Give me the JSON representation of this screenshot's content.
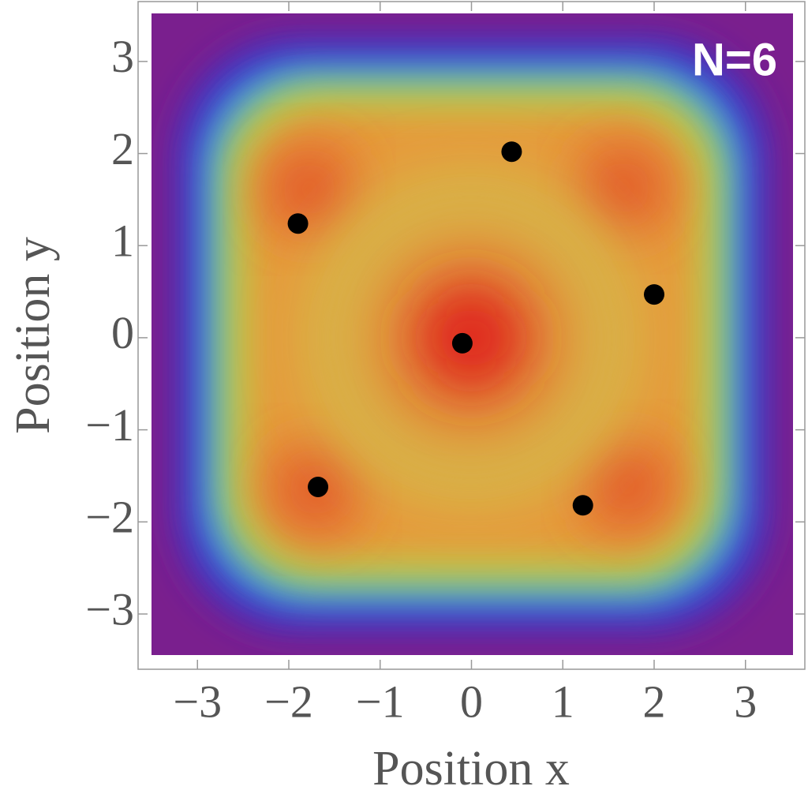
{
  "chart_data": {
    "type": "scatter",
    "annotation": "N=6",
    "x_label": "Position x",
    "y_label": "Position y",
    "x": [
      -1.9,
      0.44,
      2.0,
      -0.1,
      -1.68,
      1.22
    ],
    "values": [
      1.24,
      2.02,
      0.47,
      -0.06,
      -1.62,
      -1.82
    ],
    "color": "#000000",
    "xlim": [
      -3.65,
      3.65
    ],
    "ylim": [
      -3.6,
      3.65
    ],
    "xticks": [
      {
        "value": -3,
        "label": "−3"
      },
      {
        "value": -2,
        "label": "−2"
      },
      {
        "value": -1,
        "label": "−1"
      },
      0,
      1,
      2,
      3
    ],
    "yticks": [
      {
        "value": -3,
        "label": "−3"
      },
      {
        "value": -2,
        "label": "−2"
      },
      {
        "value": -1,
        "label": "−1"
      },
      0,
      1,
      2,
      3
    ]
  }
}
